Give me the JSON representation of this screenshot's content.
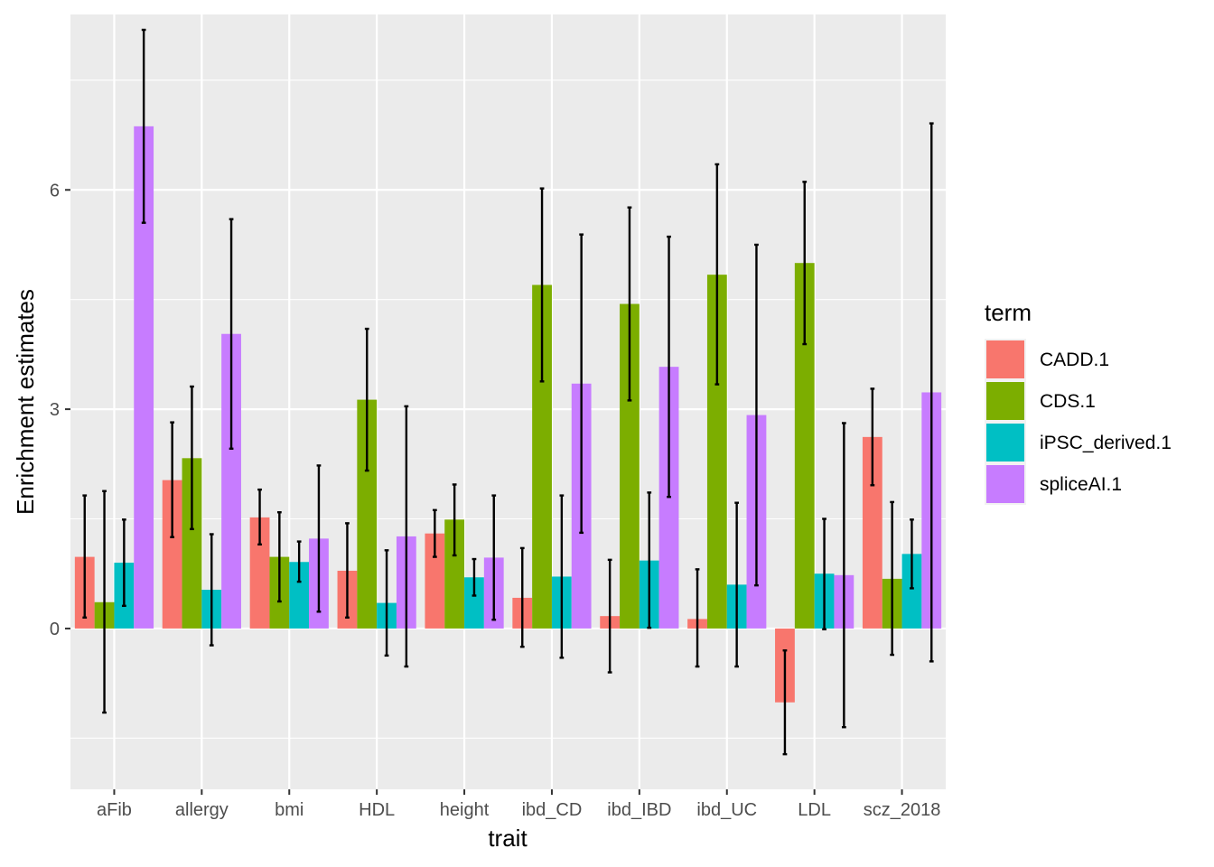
{
  "chart_data": {
    "type": "bar",
    "xlabel": "trait",
    "ylabel": "Enrichment estimates",
    "ylim": [
      -2.2,
      8.4
    ],
    "yticks": [
      0,
      3,
      6
    ],
    "grid": true,
    "legend_position": "right",
    "legend_title": "term",
    "categories": [
      "aFib",
      "allergy",
      "bmi",
      "HDL",
      "height",
      "ibd_CD",
      "ibd_IBD",
      "ibd_UC",
      "LDL",
      "scz_2018"
    ],
    "series": [
      {
        "name": "CADD.1",
        "color": "#F8766D",
        "values": [
          0.98,
          2.03,
          1.52,
          0.79,
          1.3,
          0.42,
          0.17,
          0.13,
          -1.01,
          2.62
        ],
        "lower": [
          0.15,
          1.25,
          1.15,
          0.15,
          0.98,
          -0.25,
          -0.6,
          -0.52,
          -1.72,
          1.96
        ],
        "upper": [
          1.82,
          2.82,
          1.9,
          1.44,
          1.62,
          1.1,
          0.94,
          0.81,
          -0.3,
          3.28
        ]
      },
      {
        "name": "CDS.1",
        "color": "#7CAE00",
        "values": [
          0.36,
          2.33,
          0.98,
          3.13,
          1.49,
          4.7,
          4.44,
          4.84,
          5.0,
          0.68
        ],
        "lower": [
          -1.15,
          1.36,
          0.37,
          2.16,
          1.0,
          3.38,
          3.12,
          3.34,
          3.89,
          -0.36
        ],
        "upper": [
          1.88,
          3.31,
          1.59,
          4.1,
          1.97,
          6.02,
          5.76,
          6.35,
          6.11,
          1.73
        ]
      },
      {
        "name": "iPSC_derived.1",
        "color": "#00BFC4",
        "values": [
          0.9,
          0.53,
          0.91,
          0.35,
          0.7,
          0.71,
          0.93,
          0.6,
          0.75,
          1.02
        ],
        "lower": [
          0.31,
          -0.23,
          0.64,
          -0.37,
          0.45,
          -0.4,
          0.01,
          -0.52,
          -0.01,
          0.55
        ],
        "upper": [
          1.49,
          1.29,
          1.19,
          1.07,
          0.95,
          1.82,
          1.86,
          1.72,
          1.5,
          1.49
        ]
      },
      {
        "name": "spliceAI.1",
        "color": "#C77CFF",
        "values": [
          6.87,
          4.03,
          1.23,
          1.26,
          0.97,
          3.35,
          3.58,
          2.92,
          0.73,
          3.23
        ],
        "lower": [
          5.55,
          2.46,
          0.23,
          -0.52,
          0.12,
          1.31,
          1.8,
          0.59,
          -1.35,
          -0.45
        ],
        "upper": [
          8.19,
          5.6,
          2.23,
          3.04,
          1.82,
          5.39,
          5.36,
          5.25,
          2.81,
          6.91
        ]
      }
    ]
  }
}
